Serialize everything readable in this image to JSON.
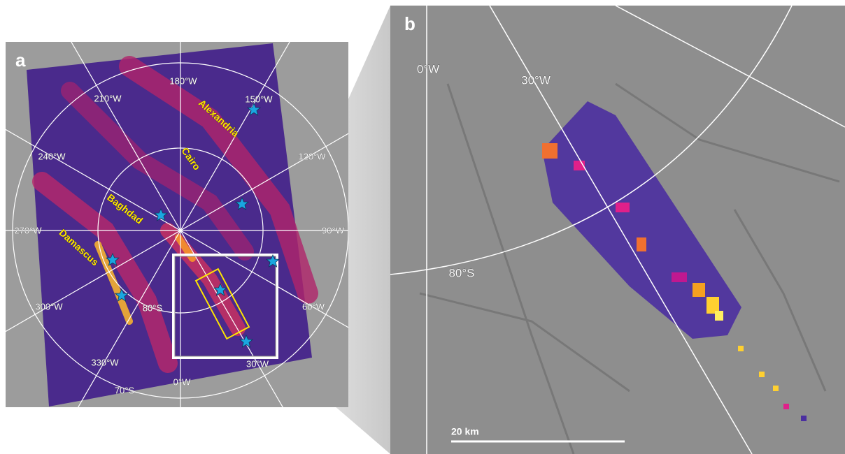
{
  "panel_a": {
    "label": "a",
    "longitudes": [
      "180°W",
      "210°W",
      "150°W",
      "240°W",
      "120°W",
      "270°W",
      "90°W",
      "300°W",
      "60°W",
      "330°W",
      "30°W",
      "0°W"
    ],
    "latitudes": [
      "80°S",
      "70°S"
    ],
    "fractures": [
      "Alexandria",
      "Cairo",
      "Baghdad",
      "Damascus"
    ]
  },
  "panel_b": {
    "label": "b",
    "longitudes": [
      "0°W",
      "30°W"
    ],
    "latitudes": [
      "80°S"
    ],
    "scale_bar": "20 km"
  }
}
